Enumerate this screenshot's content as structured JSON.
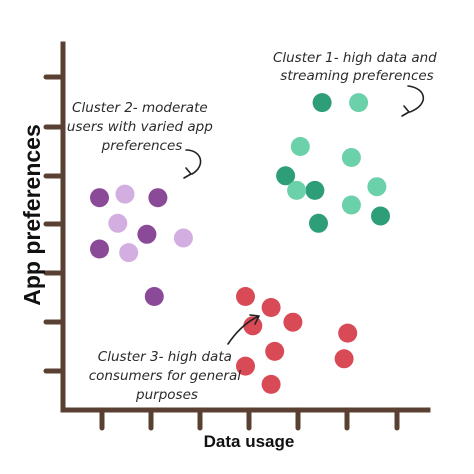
{
  "chart_data": {
    "type": "scatter",
    "xlabel": "Data usage",
    "ylabel": "App preferences",
    "xlim": [
      0,
      10
    ],
    "ylim": [
      0,
      10
    ],
    "grid": false,
    "legend": "none",
    "axis_color": "#5a4032",
    "series": [
      {
        "points": [
          {
            "x": 6.1,
            "y": 6.4,
            "shade": "#2e9e78"
          },
          {
            "x": 7.1,
            "y": 8.4,
            "shade": "#2e9e78"
          },
          {
            "x": 6.9,
            "y": 6.0,
            "shade": "#2e9e78"
          },
          {
            "x": 8.7,
            "y": 5.3,
            "shade": "#2e9e78"
          },
          {
            "x": 7.0,
            "y": 5.1,
            "shade": "#2e9e78"
          },
          {
            "x": 8.1,
            "y": 8.4,
            "shade": "#6bd1aa"
          },
          {
            "x": 6.5,
            "y": 7.2,
            "shade": "#6bd1aa"
          },
          {
            "x": 7.9,
            "y": 6.9,
            "shade": "#6bd1aa"
          },
          {
            "x": 8.6,
            "y": 6.1,
            "shade": "#6bd1aa"
          },
          {
            "x": 6.4,
            "y": 6.0,
            "shade": "#6bd1aa"
          },
          {
            "x": 7.9,
            "y": 5.6,
            "shade": "#6bd1aa"
          }
        ]
      },
      {
        "points": [
          {
            "x": 1.0,
            "y": 5.8,
            "shade": "#8b4a98"
          },
          {
            "x": 2.6,
            "y": 5.8,
            "shade": "#8b4a98"
          },
          {
            "x": 2.3,
            "y": 4.8,
            "shade": "#8b4a98"
          },
          {
            "x": 1.0,
            "y": 4.4,
            "shade": "#8b4a98"
          },
          {
            "x": 2.5,
            "y": 3.1,
            "shade": "#8b4a98"
          },
          {
            "x": 1.7,
            "y": 5.9,
            "shade": "#d3aee0"
          },
          {
            "x": 1.5,
            "y": 5.1,
            "shade": "#d3aee0"
          },
          {
            "x": 3.3,
            "y": 4.7,
            "shade": "#d3aee0"
          },
          {
            "x": 1.8,
            "y": 4.3,
            "shade": "#d3aee0"
          }
        ]
      },
      {
        "points": [
          {
            "x": 5.0,
            "y": 3.1,
            "shade": "#d94a57"
          },
          {
            "x": 5.7,
            "y": 2.8,
            "shade": "#d94a57"
          },
          {
            "x": 7.8,
            "y": 2.1,
            "shade": "#d94a57"
          },
          {
            "x": 5.2,
            "y": 2.3,
            "shade": "#d94a57"
          },
          {
            "x": 6.3,
            "y": 2.4,
            "shade": "#d94a57"
          },
          {
            "x": 5.8,
            "y": 1.6,
            "shade": "#d94a57"
          },
          {
            "x": 7.7,
            "y": 1.4,
            "shade": "#d94a57"
          },
          {
            "x": 5.0,
            "y": 1.2,
            "shade": "#d94a57"
          },
          {
            "x": 5.7,
            "y": 0.7,
            "shade": "#d94a57"
          }
        ]
      }
    ],
    "annotations": [
      {
        "lines": [
          "Cluster 1- high data and",
          "streaming preferences"
        ]
      },
      {
        "lines": [
          "Cluster 2- moderate",
          "users with varied app",
          "preferences"
        ]
      },
      {
        "lines": [
          "Cluster 3- high data",
          "consumers for general",
          "purposes"
        ]
      }
    ]
  }
}
